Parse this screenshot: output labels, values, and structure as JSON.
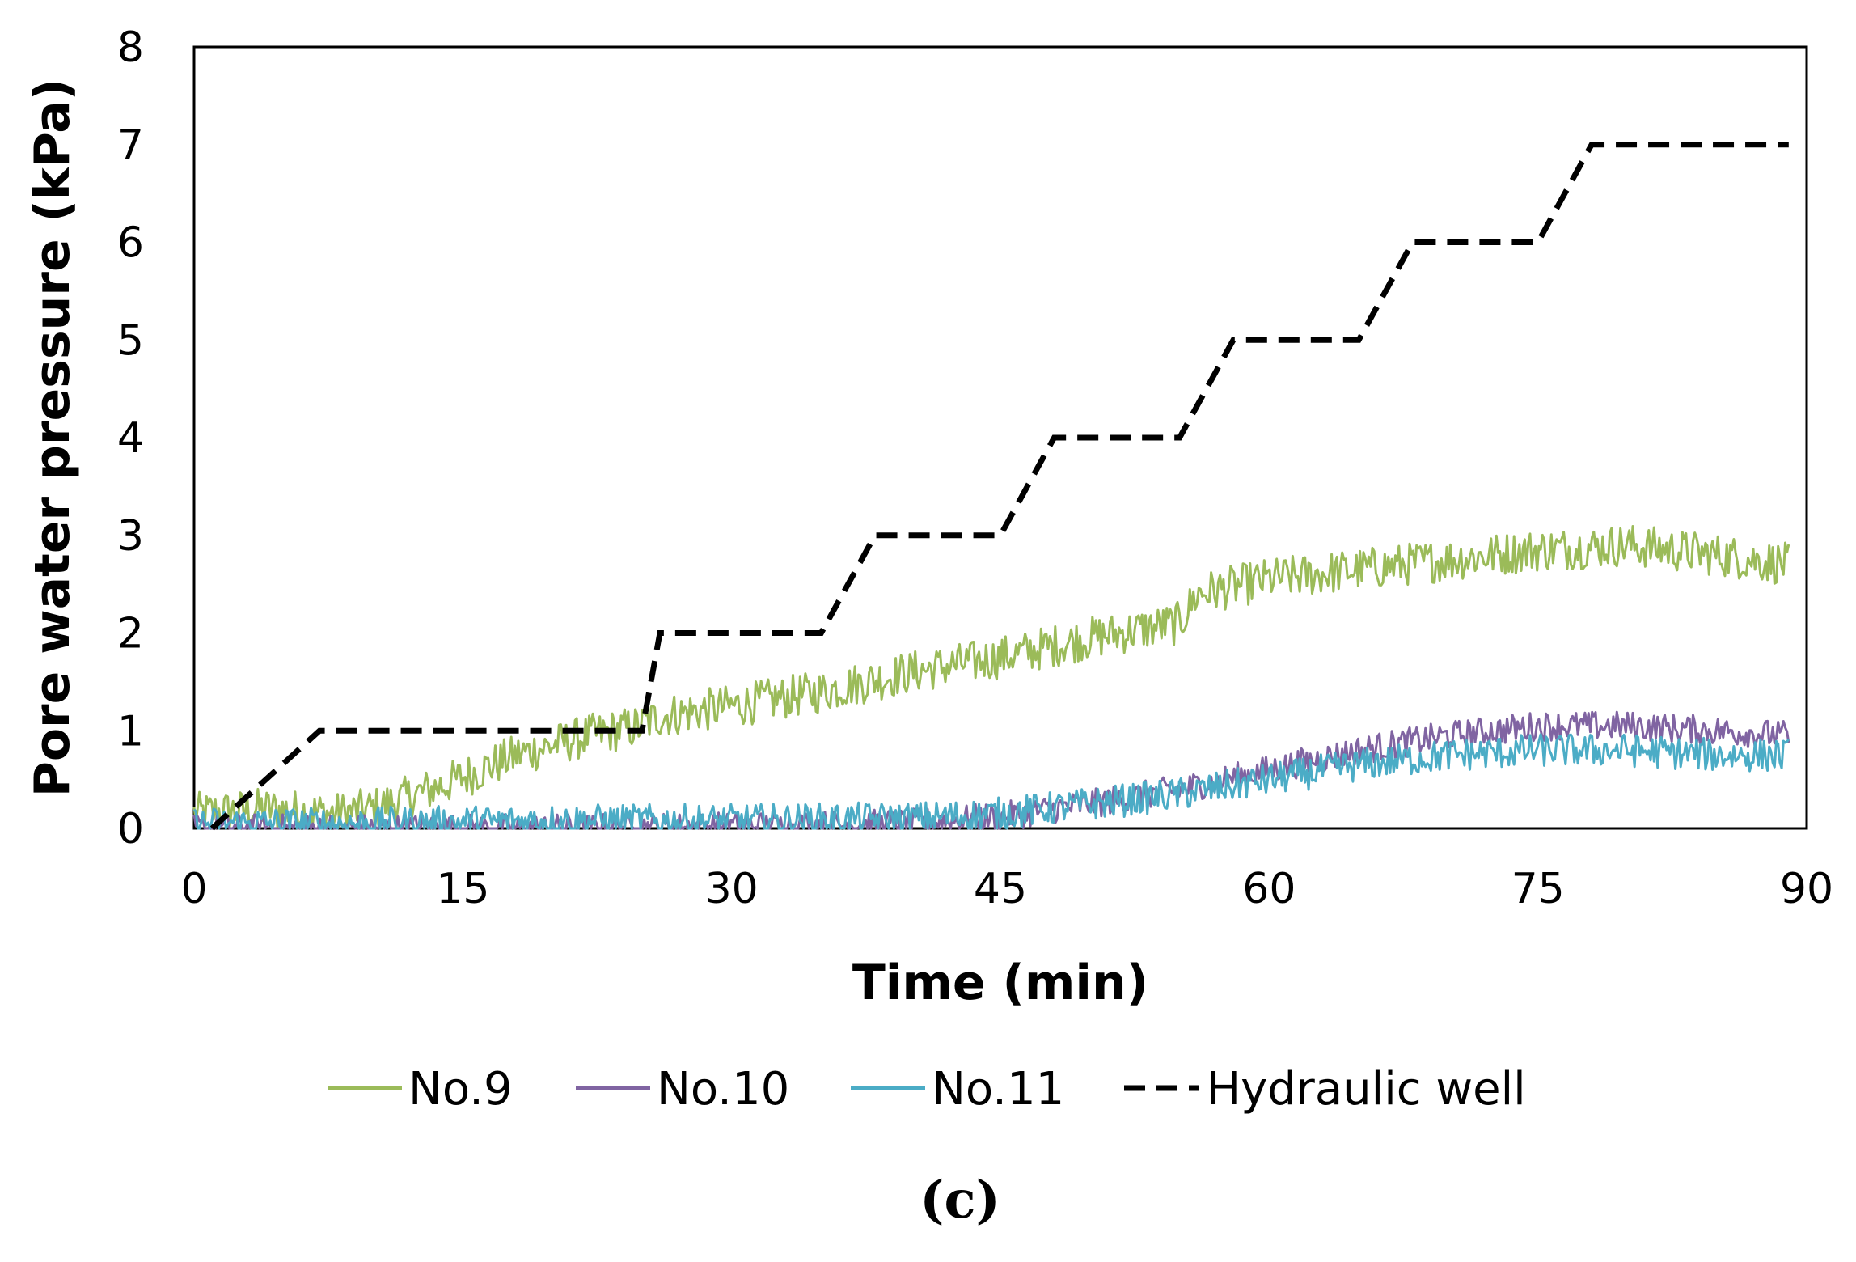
{
  "chart_data": {
    "type": "line",
    "panel_label": "(c)",
    "xlabel": "Time (min)",
    "ylabel": "Pore water pressure (kPa)",
    "xlim": [
      0,
      90
    ],
    "ylim": [
      0,
      8
    ],
    "xticks": [
      0,
      15,
      30,
      45,
      60,
      75,
      90
    ],
    "yticks": [
      0,
      1,
      2,
      3,
      4,
      5,
      6,
      7,
      8
    ],
    "grid": false,
    "legend_position": "bottom",
    "series": [
      {
        "name": "No.9",
        "color": "#9bbb59",
        "style": "solid-noisy",
        "x": [
          0,
          4,
          8,
          10,
          14,
          18,
          22,
          25,
          26,
          30,
          35,
          40,
          45,
          50,
          55,
          56,
          60,
          65,
          70,
          75,
          80,
          85,
          89
        ],
        "y": [
          0.15,
          0.2,
          0.15,
          0.2,
          0.45,
          0.75,
          0.95,
          1.05,
          1.15,
          1.25,
          1.4,
          1.6,
          1.75,
          1.95,
          2.1,
          2.4,
          2.55,
          2.65,
          2.75,
          2.85,
          2.9,
          2.8,
          2.7
        ],
        "noise": 0.22
      },
      {
        "name": "No.10",
        "color": "#8064a2",
        "style": "solid-noisy",
        "x": [
          0,
          10,
          20,
          30,
          40,
          45,
          50,
          55,
          60,
          65,
          70,
          75,
          80,
          85,
          89
        ],
        "y": [
          0,
          0,
          0,
          0.02,
          0.05,
          0.12,
          0.25,
          0.4,
          0.6,
          0.8,
          0.95,
          1.05,
          1.05,
          1.0,
          0.95
        ],
        "noise": 0.15
      },
      {
        "name": "No.11",
        "color": "#4bacc6",
        "style": "solid-noisy",
        "x": [
          0,
          10,
          20,
          30,
          40,
          45,
          50,
          55,
          60,
          65,
          70,
          75,
          80,
          85,
          89
        ],
        "y": [
          0.05,
          0.05,
          0.08,
          0.08,
          0.1,
          0.15,
          0.25,
          0.35,
          0.5,
          0.65,
          0.75,
          0.8,
          0.8,
          0.75,
          0.75
        ],
        "noise": 0.17
      },
      {
        "name": "Hydraulic well",
        "color": "#000000",
        "style": "dashed",
        "x": [
          1,
          7,
          16,
          25,
          26,
          35,
          38,
          45,
          48,
          55,
          58,
          65,
          68,
          75,
          78,
          89
        ],
        "y": [
          0,
          1,
          1,
          1,
          2,
          2,
          3,
          3,
          4,
          4,
          5,
          5,
          6,
          6,
          7,
          7
        ]
      }
    ]
  }
}
